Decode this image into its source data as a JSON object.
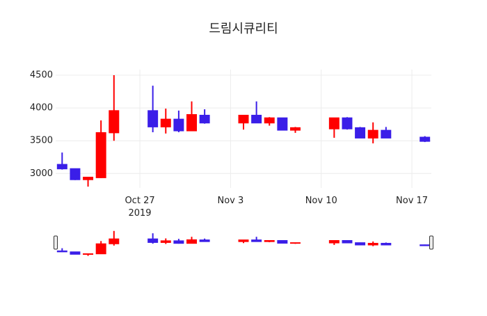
{
  "chart_data": {
    "type": "candlestick",
    "title": "드림시큐리티",
    "x": [
      "2019-10-21",
      "2019-10-22",
      "2019-10-23",
      "2019-10-24",
      "2019-10-25",
      "2019-10-28",
      "2019-10-29",
      "2019-10-30",
      "2019-10-31",
      "2019-11-01",
      "2019-11-04",
      "2019-11-05",
      "2019-11-06",
      "2019-11-07",
      "2019-11-08",
      "2019-11-11",
      "2019-11-12",
      "2019-11-13",
      "2019-11-14",
      "2019-11-15",
      "2019-11-18"
    ],
    "open": [
      3140,
      3075,
      2905,
      2935,
      3620,
      3960,
      3710,
      3830,
      3650,
      3890,
      3770,
      3890,
      3770,
      3850,
      3660,
      3680,
      3850,
      3700,
      3540,
      3660,
      3555
    ],
    "high": [
      3320,
      3075,
      2950,
      3810,
      4500,
      4340,
      3990,
      3960,
      4100,
      3980,
      3890,
      4100,
      3860,
      3850,
      3710,
      3850,
      3860,
      3710,
      3780,
      3710,
      3570
    ],
    "low": [
      3060,
      2900,
      2800,
      2930,
      3500,
      3630,
      3610,
      3630,
      3650,
      3760,
      3670,
      3770,
      3730,
      3660,
      3620,
      3545,
      3670,
      3540,
      3460,
      3540,
      3480
    ],
    "close": [
      3070,
      2905,
      2945,
      3625,
      3960,
      3710,
      3830,
      3650,
      3900,
      3770,
      3890,
      3770,
      3850,
      3660,
      3700,
      3850,
      3680,
      3540,
      3660,
      3540,
      3490
    ],
    "increasing_color": "#ff0000",
    "decreasing_color": "#3a1ee8",
    "xlim": [
      "2019-10-20T12:00",
      "2019-11-18T12:00"
    ],
    "xticks": [
      {
        "value": "2019-10-27",
        "label": "Oct 27\n2019"
      },
      {
        "value": "2019-11-03",
        "label": "Nov 3"
      },
      {
        "value": "2019-11-10",
        "label": "Nov 10"
      },
      {
        "value": "2019-11-17",
        "label": "Nov 17"
      }
    ],
    "ylim": [
      2780,
      4585
    ],
    "yticks": [
      3000,
      3500,
      4000,
      4500
    ],
    "grid": true,
    "rangeslider": true
  }
}
